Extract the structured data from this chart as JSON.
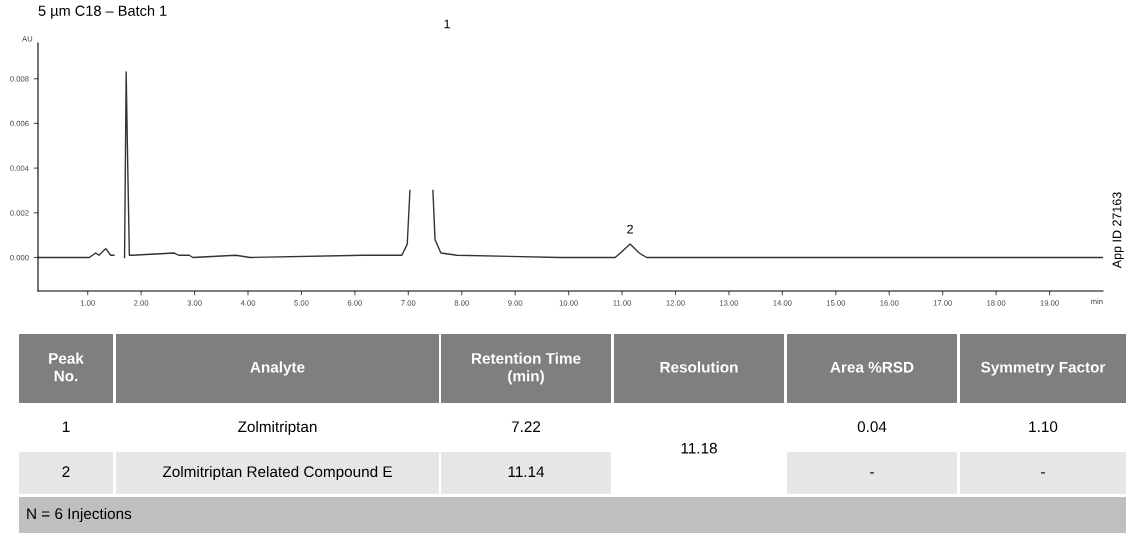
{
  "chart_data": {
    "type": "line",
    "title": "5 µm C18 – Batch 1",
    "xlabel": "min",
    "ylabel": "AU",
    "x": [
      0.07,
      1.03,
      1.15,
      1.21,
      1.34,
      1.43,
      1.49,
      1.51,
      1.57,
      1.59,
      1.61,
      1.66,
      1.69,
      1.72,
      1.75,
      1.78,
      1.83,
      2.62,
      2.7,
      2.9,
      2.97,
      3.77,
      4.04,
      6.17,
      6.71,
      6.88,
      6.98,
      7.03,
      7.06,
      7.43,
      7.46,
      7.5,
      7.61,
      7.91,
      9.84,
      10.87,
      10.97,
      11.15,
      11.32,
      11.46,
      11.92,
      12.27,
      17.87,
      20.0
    ],
    "series": [
      {
        "color": "#333333",
        "values": [
          0.0,
          0.0,
          0.0002,
          0.0001,
          0.0004,
          0.0001,
          0.0001,
          null,
          null,
          null,
          null,
          null,
          0.0,
          0.0083,
          0.004,
          0.0001,
          0.0001,
          0.0002,
          0.0001,
          0.0001,
          0.0,
          0.0001,
          0.0,
          0.0001,
          0.0001,
          0.0001,
          0.0006,
          0.003,
          null,
          null,
          0.003,
          0.0008,
          0.0002,
          0.0001,
          0.0,
          0.0,
          0.0002,
          0.0006,
          0.0002,
          0.0,
          0.0,
          0.0,
          0.0,
          0.0
        ]
      }
    ],
    "xlim": [
      0.07,
      20.0
    ],
    "ylim": [
      -0.0015,
      0.0096
    ],
    "xticks": [
      {
        "value": 1,
        "label": "1.00"
      },
      {
        "value": 2,
        "label": "2.00"
      },
      {
        "value": 3,
        "label": "3.00"
      },
      {
        "value": 4,
        "label": "4.00"
      },
      {
        "value": 5,
        "label": "5.00"
      },
      {
        "value": 6,
        "label": "6.00"
      },
      {
        "value": 7,
        "label": "7.00"
      },
      {
        "value": 8,
        "label": "8.00"
      },
      {
        "value": 9,
        "label": "9.00"
      },
      {
        "value": 10,
        "label": "10.00"
      },
      {
        "value": 11,
        "label": "11.00"
      },
      {
        "value": 12,
        "label": "12.00"
      },
      {
        "value": 13,
        "label": "13.00"
      },
      {
        "value": 14,
        "label": "14.00"
      },
      {
        "value": 15,
        "label": "15.00"
      },
      {
        "value": 16,
        "label": "16.00"
      },
      {
        "value": 17,
        "label": "17.00"
      },
      {
        "value": 18,
        "label": "18.00"
      },
      {
        "value": 19,
        "label": "19.00"
      }
    ],
    "yticks": [
      {
        "value": 0,
        "label": "0.000"
      },
      {
        "value": 0.002,
        "label": "0.002"
      },
      {
        "value": 0.004,
        "label": "0.004"
      },
      {
        "value": 0.006,
        "label": "0.006"
      },
      {
        "value": 0.008,
        "label": "0.008"
      }
    ],
    "grid": false,
    "legend": false,
    "marker": "none",
    "line_style": "solid",
    "annotations": [
      "1",
      {
        "text": "2",
        "x": 11.15,
        "y": 0.0006
      },
      "App ID 27163",
      "Peak\nNo.",
      "Analyte",
      "Retention Time\n(min)",
      "Resolution",
      "Area %RSD",
      "Symmetry Factor",
      "1",
      "Zolmitriptan",
      "7.22",
      "11.18",
      "0.04",
      "1.10",
      "2",
      "Zolmitriptan Related Compound E",
      "11.14",
      "-",
      "-",
      "N = 6 Injections"
    ]
  }
}
